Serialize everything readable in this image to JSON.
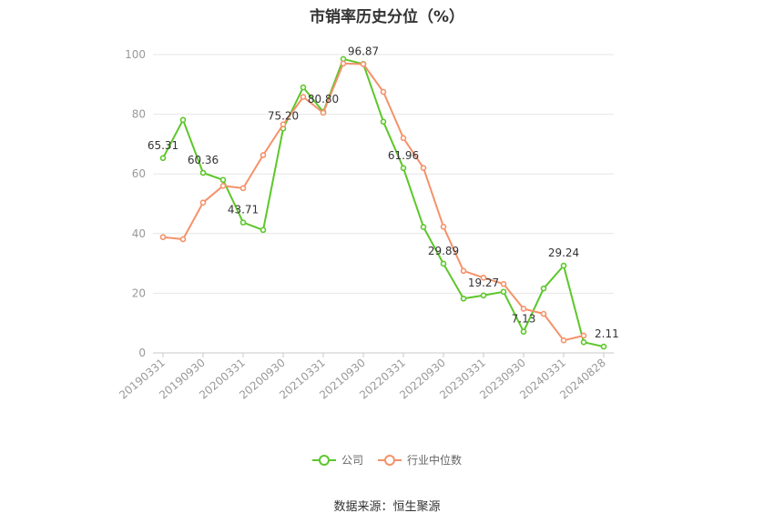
{
  "chart_data": {
    "type": "line",
    "title": "市销率历史分位（%）",
    "x": [
      "20190331",
      "20190630",
      "20190930",
      "20191231",
      "20200331",
      "20200630",
      "20200930",
      "20201231",
      "20210331",
      "20210630",
      "20210930",
      "20211231",
      "20220331",
      "20220630",
      "20220930",
      "20221231",
      "20230331",
      "20230630",
      "20230930",
      "20231231",
      "20240331",
      "20240630",
      "20240828"
    ],
    "x_tick_labels": [
      "20190331",
      "20190930",
      "20200331",
      "20200930",
      "20210331",
      "20210930",
      "20220331",
      "20220930",
      "20230331",
      "20230930",
      "20240331",
      "20240828"
    ],
    "ylim": [
      0,
      100
    ],
    "y_ticks": [
      0,
      20,
      40,
      60,
      80,
      100
    ],
    "grid": true,
    "legend_position": "bottom",
    "series": [
      {
        "name": "公司",
        "color": "#5cc72a",
        "values": [
          65.31,
          78.1,
          60.36,
          58.0,
          43.71,
          41.2,
          75.2,
          89.0,
          80.8,
          98.5,
          96.87,
          77.5,
          61.96,
          42.2,
          29.89,
          18.2,
          19.27,
          20.5,
          7.13,
          21.6,
          29.24,
          3.6,
          2.11
        ]
      },
      {
        "name": "行业中位数",
        "color": "#f4926a",
        "values": [
          38.8,
          38.1,
          50.4,
          56.0,
          55.2,
          66.3,
          76.6,
          85.8,
          80.5,
          97.0,
          96.8,
          87.5,
          72.0,
          62.0,
          42.3,
          27.5,
          25.2,
          23.1,
          14.8,
          13.1,
          4.2,
          5.8,
          null
        ]
      }
    ],
    "data_labels": [
      {
        "series": 0,
        "index": 0,
        "text": "65.31"
      },
      {
        "series": 0,
        "index": 2,
        "text": "60.36"
      },
      {
        "series": 0,
        "index": 4,
        "text": "43.71"
      },
      {
        "series": 0,
        "index": 6,
        "text": "75.20"
      },
      {
        "series": 0,
        "index": 8,
        "text": "80.80"
      },
      {
        "series": 0,
        "index": 10,
        "text": "96.87"
      },
      {
        "series": 0,
        "index": 12,
        "text": "61.96"
      },
      {
        "series": 0,
        "index": 14,
        "text": "29.89"
      },
      {
        "series": 0,
        "index": 16,
        "text": "19.27"
      },
      {
        "series": 0,
        "index": 18,
        "text": "7.13"
      },
      {
        "series": 0,
        "index": 20,
        "text": "29.24"
      },
      {
        "series": 0,
        "index": 22,
        "text": "2.11"
      }
    ]
  },
  "source_note": "数据来源：恒生聚源"
}
